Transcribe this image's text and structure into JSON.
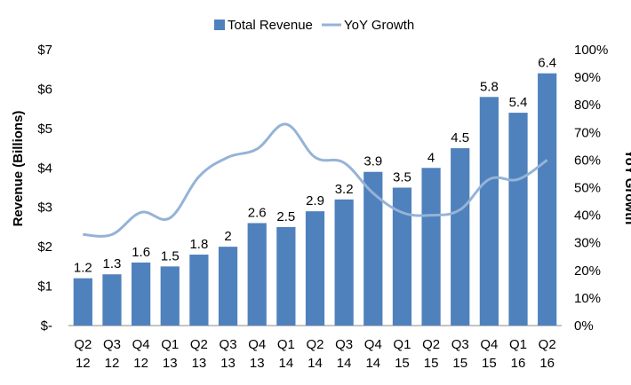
{
  "chart_data": {
    "type": "bar",
    "title": "",
    "categories": [
      [
        "Q2",
        "12"
      ],
      [
        "Q3",
        "12"
      ],
      [
        "Q4",
        "12"
      ],
      [
        "Q1",
        "13"
      ],
      [
        "Q2",
        "13"
      ],
      [
        "Q3",
        "13"
      ],
      [
        "Q4",
        "13"
      ],
      [
        "Q1",
        "14"
      ],
      [
        "Q2",
        "14"
      ],
      [
        "Q3",
        "14"
      ],
      [
        "Q4",
        "14"
      ],
      [
        "Q1",
        "15"
      ],
      [
        "Q2",
        "15"
      ],
      [
        "Q3",
        "15"
      ],
      [
        "Q4",
        "15"
      ],
      [
        "Q1",
        "16"
      ],
      [
        "Q2",
        "16"
      ]
    ],
    "series": [
      {
        "name": "Total Revenue",
        "type": "bar",
        "axis": "left",
        "color": "#4F81BD",
        "values": [
          1.2,
          1.3,
          1.6,
          1.5,
          1.8,
          2,
          2.6,
          2.5,
          2.9,
          3.2,
          3.9,
          3.5,
          4,
          4.5,
          5.8,
          5.4,
          6.4
        ],
        "data_labels": [
          "1.2",
          "1.3",
          "1.6",
          "1.5",
          "1.8",
          "2",
          "2.6",
          "2.5",
          "2.9",
          "3.2",
          "3.9",
          "3.5",
          "4",
          "4.5",
          "5.8",
          "5.4",
          "6.4"
        ]
      },
      {
        "name": "YoY Growth",
        "type": "line",
        "axis": "right",
        "color": "#95B3D7",
        "values": [
          33,
          33,
          41,
          39,
          54,
          61,
          64,
          73,
          61,
          59,
          48,
          41,
          40,
          42,
          53,
          53,
          60
        ]
      }
    ],
    "y_left": {
      "label": "Revenue (Billions)",
      "min": 0,
      "max": 7,
      "ticks": [
        0,
        1,
        2,
        3,
        4,
        5,
        6,
        7
      ],
      "tick_labels": [
        "$-",
        "$1",
        "$2",
        "$3",
        "$4",
        "$5",
        "$6",
        "$7"
      ]
    },
    "y_right": {
      "label": "YoY Growth",
      "min": 0,
      "max": 100,
      "ticks": [
        0,
        10,
        20,
        30,
        40,
        50,
        60,
        70,
        80,
        90,
        100
      ],
      "tick_labels": [
        "0%",
        "10%",
        "20%",
        "30%",
        "40%",
        "50%",
        "60%",
        "70%",
        "80%",
        "90%",
        "100%"
      ]
    },
    "grid": false,
    "legend_position": "top-center"
  }
}
